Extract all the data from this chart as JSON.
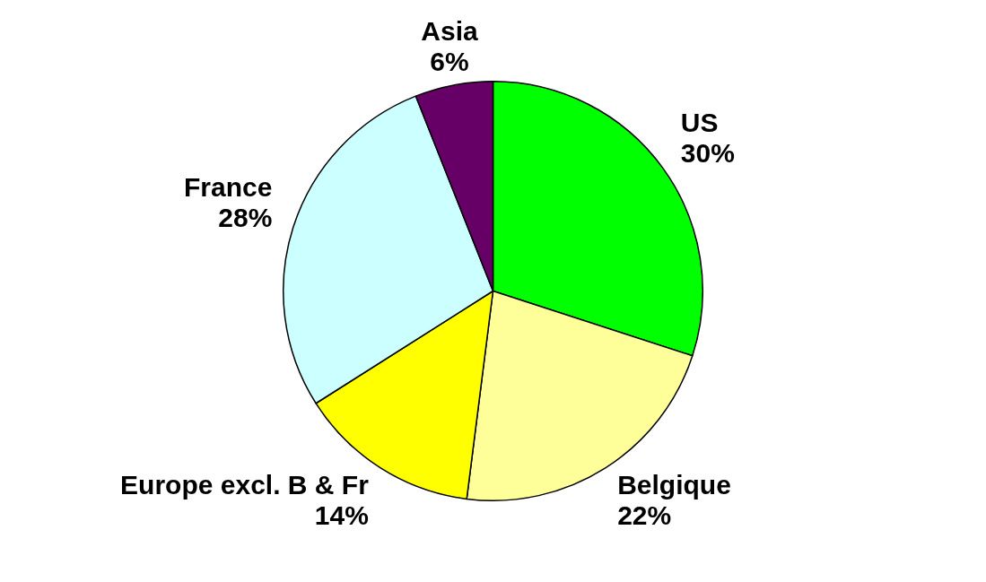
{
  "chart_data": {
    "type": "pie",
    "categories": [
      "US",
      "Belgique",
      "Europe excl. B & Fr",
      "France",
      "Asia"
    ],
    "values": [
      30,
      22,
      14,
      28,
      6
    ],
    "value_labels": [
      "30%",
      "22%",
      "14%",
      "28%",
      "6%"
    ],
    "colors": [
      "#00ff00",
      "#ffff99",
      "#ffff00",
      "#ccffff",
      "#660066"
    ],
    "legend": false
  }
}
